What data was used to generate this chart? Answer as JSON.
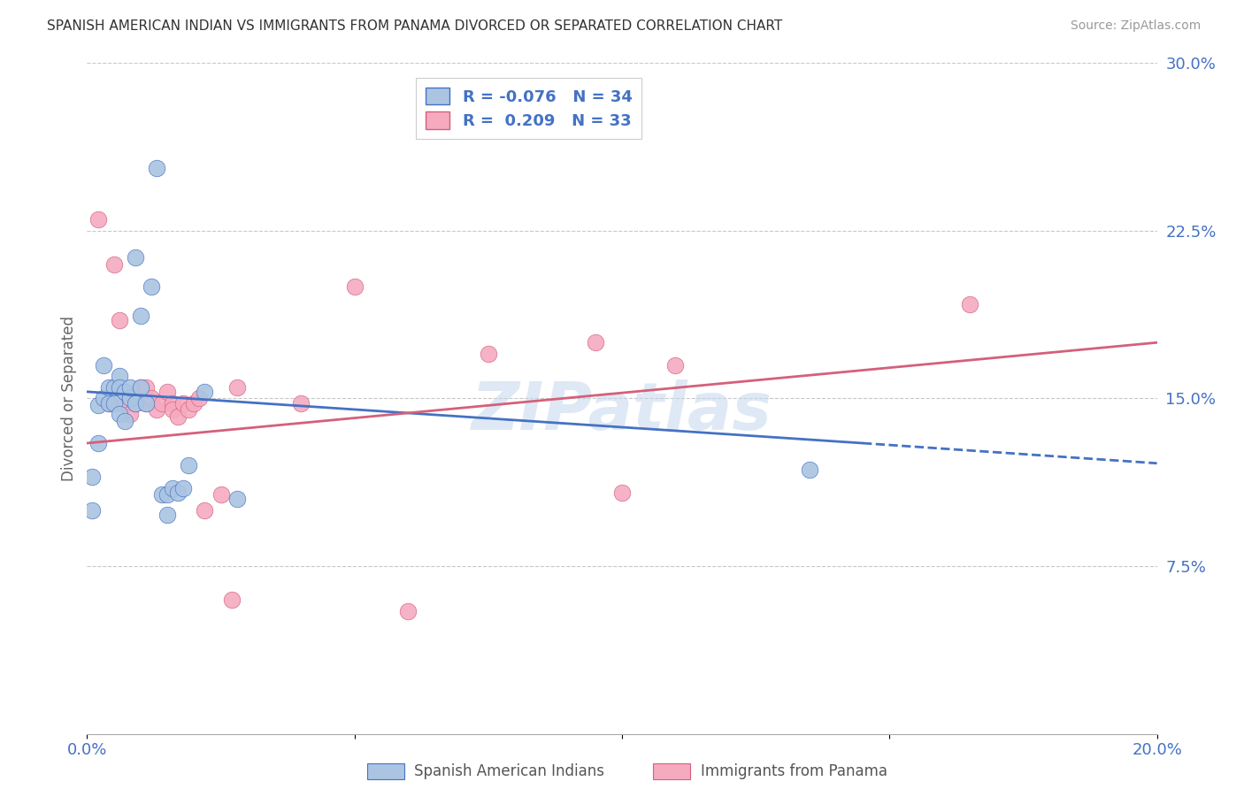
{
  "title": "SPANISH AMERICAN INDIAN VS IMMIGRANTS FROM PANAMA DIVORCED OR SEPARATED CORRELATION CHART",
  "source": "Source: ZipAtlas.com",
  "ylabel": "Divorced or Separated",
  "xlim": [
    0.0,
    0.2
  ],
  "ylim": [
    0.0,
    0.3
  ],
  "xticks": [
    0.0,
    0.05,
    0.1,
    0.15,
    0.2
  ],
  "xtick_labels": [
    "0.0%",
    "",
    "",
    "",
    "20.0%"
  ],
  "ytick_labels_right": [
    "30.0%",
    "22.5%",
    "15.0%",
    "7.5%"
  ],
  "yticks_right": [
    0.3,
    0.225,
    0.15,
    0.075
  ],
  "blue_R": -0.076,
  "blue_N": 34,
  "pink_R": 0.209,
  "pink_N": 33,
  "blue_label": "Spanish American Indians",
  "pink_label": "Immigrants from Panama",
  "blue_color": "#aac4e2",
  "pink_color": "#f5aac0",
  "blue_line_color": "#4472c4",
  "pink_line_color": "#d4607a",
  "watermark": "ZIPatlas",
  "blue_points_x": [
    0.001,
    0.001,
    0.002,
    0.002,
    0.003,
    0.003,
    0.004,
    0.004,
    0.005,
    0.005,
    0.006,
    0.006,
    0.006,
    0.007,
    0.007,
    0.008,
    0.008,
    0.009,
    0.009,
    0.01,
    0.01,
    0.011,
    0.012,
    0.013,
    0.014,
    0.015,
    0.015,
    0.016,
    0.017,
    0.018,
    0.019,
    0.022,
    0.028,
    0.135
  ],
  "blue_points_y": [
    0.115,
    0.1,
    0.13,
    0.147,
    0.15,
    0.165,
    0.155,
    0.148,
    0.155,
    0.148,
    0.16,
    0.155,
    0.143,
    0.153,
    0.14,
    0.15,
    0.155,
    0.148,
    0.213,
    0.155,
    0.187,
    0.148,
    0.2,
    0.253,
    0.107,
    0.107,
    0.098,
    0.11,
    0.108,
    0.11,
    0.12,
    0.153,
    0.105,
    0.118
  ],
  "pink_points_x": [
    0.002,
    0.004,
    0.005,
    0.006,
    0.007,
    0.008,
    0.009,
    0.01,
    0.011,
    0.011,
    0.012,
    0.013,
    0.014,
    0.015,
    0.016,
    0.016,
    0.017,
    0.018,
    0.019,
    0.02,
    0.021,
    0.022,
    0.025,
    0.027,
    0.028,
    0.04,
    0.05,
    0.06,
    0.075,
    0.095,
    0.1,
    0.11,
    0.165
  ],
  "pink_points_y": [
    0.23,
    0.148,
    0.21,
    0.185,
    0.148,
    0.143,
    0.148,
    0.155,
    0.148,
    0.155,
    0.15,
    0.145,
    0.148,
    0.153,
    0.148,
    0.145,
    0.142,
    0.148,
    0.145,
    0.148,
    0.15,
    0.1,
    0.107,
    0.06,
    0.155,
    0.148,
    0.2,
    0.055,
    0.17,
    0.175,
    0.108,
    0.165,
    0.192
  ],
  "blue_line_start_x": 0.0,
  "blue_line_start_y": 0.153,
  "blue_line_solid_end_x": 0.145,
  "blue_line_solid_end_y": 0.13,
  "blue_line_dashed_end_x": 0.2,
  "blue_line_dashed_end_y": 0.121,
  "pink_line_start_x": 0.0,
  "pink_line_start_y": 0.13,
  "pink_line_end_x": 0.2,
  "pink_line_end_y": 0.175
}
